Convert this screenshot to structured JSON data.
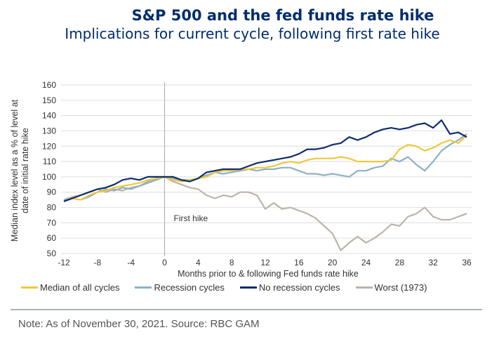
{
  "title": "S&P 500 and the fed funds rate hike",
  "subtitle": "Implications for current cycle, following first rate hike",
  "note": "Note: As of November 30, 2021. Source: RBC GAM",
  "chart_data": {
    "type": "line",
    "title": "S&P 500 and the fed funds rate hike",
    "subtitle": "Implications for current cycle, following first rate hike",
    "xlabel": "Months prior to & following Fed funds rate hike",
    "ylabel": "Median index level as a % of level at date of initial rate hike",
    "xlim": [
      -12,
      36
    ],
    "ylim": [
      50,
      160
    ],
    "xticks": [
      -12,
      -8,
      -4,
      0,
      4,
      8,
      12,
      16,
      20,
      24,
      28,
      32,
      36
    ],
    "yticks": [
      50,
      60,
      70,
      80,
      90,
      100,
      110,
      120,
      130,
      140,
      150,
      160
    ],
    "grid": true,
    "legend_position": "bottom",
    "annotations": [
      {
        "text": "First hike",
        "x": 0
      }
    ],
    "x": [
      -12,
      -11,
      -10,
      -9,
      -8,
      -7,
      -6,
      -5,
      -4,
      -3,
      -2,
      -1,
      0,
      1,
      2,
      3,
      4,
      5,
      6,
      7,
      8,
      9,
      10,
      11,
      12,
      13,
      14,
      15,
      16,
      17,
      18,
      19,
      20,
      21,
      22,
      23,
      24,
      25,
      26,
      27,
      28,
      29,
      30,
      31,
      32,
      33,
      34,
      35,
      36
    ],
    "series": [
      {
        "name": "Median of all cycles",
        "color": "#f2c73c",
        "values": [
          84,
          86,
          85,
          88,
          90,
          91,
          93,
          94,
          95,
          96,
          98,
          99,
          100,
          98,
          97,
          98,
          99,
          100,
          103,
          104,
          104,
          105,
          105,
          106,
          106,
          107,
          109,
          110,
          109,
          111,
          112,
          112,
          112,
          113,
          112,
          110,
          110,
          110,
          110,
          111,
          118,
          121,
          120,
          117,
          119,
          122,
          124,
          122,
          127
        ]
      },
      {
        "name": "Recession cycles",
        "color": "#8fb0c4",
        "values": [
          85,
          86,
          85,
          87,
          90,
          92,
          91,
          93,
          92,
          94,
          96,
          98,
          100,
          99,
          98,
          98,
          99,
          101,
          103,
          102,
          103,
          104,
          105,
          104,
          105,
          105,
          106,
          106,
          104,
          102,
          102,
          101,
          102,
          101,
          100,
          104,
          104,
          106,
          107,
          112,
          110,
          113,
          108,
          104,
          110,
          117,
          121,
          124,
          128
        ]
      },
      {
        "name": "No recession cycles",
        "color": "#0d2c6c",
        "values": [
          84,
          86,
          88,
          90,
          92,
          93,
          95,
          98,
          99,
          98,
          100,
          100,
          100,
          100,
          98,
          97,
          99,
          103,
          104,
          105,
          105,
          105,
          107,
          109,
          110,
          111,
          112,
          113,
          115,
          118,
          118,
          119,
          121,
          122,
          126,
          124,
          126,
          129,
          131,
          132,
          131,
          132,
          134,
          135,
          132,
          137,
          128,
          129,
          126
        ]
      },
      {
        "name": "Worst (1973)",
        "color": "#bdb4a8",
        "values": [
          85,
          87,
          88,
          90,
          92,
          90,
          92,
          91,
          93,
          94,
          97,
          99,
          100,
          97,
          95,
          93,
          92,
          88,
          86,
          88,
          87,
          90,
          90,
          88,
          79,
          83,
          79,
          80,
          78,
          76,
          73,
          68,
          63,
          52,
          57,
          61,
          57,
          60,
          64,
          69,
          68,
          74,
          76,
          80,
          74,
          72,
          72,
          74,
          76
        ]
      }
    ]
  }
}
